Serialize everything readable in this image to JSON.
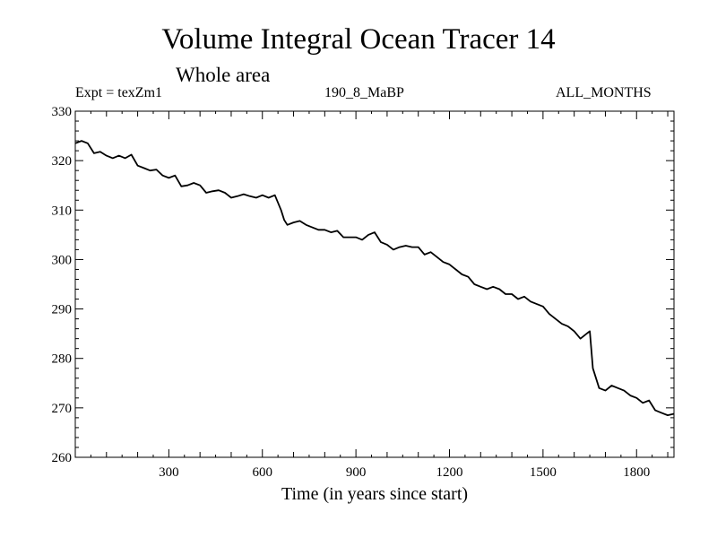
{
  "title": "Volume Integral Ocean Tracer 14",
  "subtitle": "Whole area",
  "header_left": "Expt = texZm1",
  "header_center": "190_8_MaBP",
  "header_right": "ALL_MONTHS",
  "chart_data": {
    "type": "line",
    "title": "Volume Integral Ocean Tracer 14",
    "subtitle": "Whole area",
    "xlabel": "Time (in years since start)",
    "ylabel": "",
    "xlim": [
      0,
      1920
    ],
    "ylim": [
      260,
      330
    ],
    "xticks": [
      300,
      600,
      900,
      1200,
      1500,
      1800
    ],
    "yticks": [
      260,
      270,
      280,
      290,
      300,
      310,
      320,
      330
    ],
    "grid": false,
    "line_color": "#000000",
    "series": [
      {
        "x": [
          0,
          20,
          40,
          60,
          80,
          100,
          120,
          140,
          160,
          180,
          200,
          220,
          240,
          260,
          280,
          300,
          320,
          340,
          360,
          380,
          400,
          420,
          440,
          460,
          480,
          500,
          520,
          540,
          560,
          580,
          600,
          620,
          640,
          660,
          670,
          680,
          700,
          720,
          740,
          760,
          780,
          800,
          820,
          840,
          860,
          880,
          900,
          920,
          940,
          960,
          980,
          1000,
          1020,
          1040,
          1060,
          1080,
          1100,
          1120,
          1140,
          1160,
          1180,
          1200,
          1220,
          1240,
          1260,
          1280,
          1300,
          1320,
          1340,
          1360,
          1380,
          1400,
          1420,
          1440,
          1460,
          1480,
          1500,
          1520,
          1540,
          1560,
          1580,
          1600,
          1620,
          1640,
          1650,
          1660,
          1680,
          1700,
          1720,
          1740,
          1760,
          1780,
          1800,
          1820,
          1840,
          1860,
          1880,
          1900,
          1920
        ],
        "y": [
          323.5,
          324.0,
          323.5,
          321.5,
          321.8,
          321.0,
          320.5,
          321.0,
          320.5,
          321.2,
          319.0,
          318.5,
          318.0,
          318.2,
          317.0,
          316.5,
          317.0,
          314.8,
          315.0,
          315.5,
          315.0,
          313.5,
          313.8,
          314.0,
          313.5,
          312.5,
          312.8,
          313.2,
          312.8,
          312.5,
          313.0,
          312.5,
          313.0,
          310.0,
          308.0,
          307.0,
          307.5,
          307.8,
          307.0,
          306.5,
          306.0,
          306.0,
          305.5,
          305.8,
          304.5,
          304.5,
          304.5,
          304.0,
          305.0,
          305.5,
          303.5,
          303.0,
          302.0,
          302.5,
          302.8,
          302.5,
          302.5,
          301.0,
          301.5,
          300.5,
          299.5,
          299.0,
          298.0,
          297.0,
          296.5,
          295.0,
          294.5,
          294.0,
          294.5,
          294.0,
          293.0,
          293.0,
          292.0,
          292.5,
          291.5,
          291.0,
          290.5,
          289.0,
          288.0,
          287.0,
          286.5,
          285.5,
          284.0,
          285.0,
          285.5,
          278.0,
          274.0,
          273.5,
          274.5,
          274.0,
          273.5,
          272.5,
          272.0,
          271.0,
          271.5,
          269.5,
          269.0,
          268.5,
          268.8
        ]
      }
    ]
  }
}
